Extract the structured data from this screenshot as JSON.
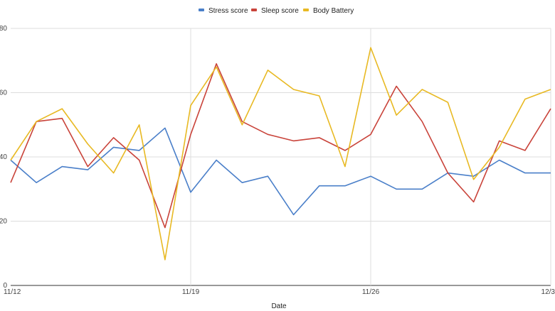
{
  "chart_data": {
    "type": "line",
    "title": "",
    "xlabel": "Date",
    "ylabel": "",
    "ylim": [
      0,
      80
    ],
    "yticks": [
      "0",
      "20",
      "40",
      "60",
      "80"
    ],
    "xtick_labels": [
      "11/12",
      "11/19",
      "11/26",
      "12/3"
    ],
    "xtick_indices": [
      0,
      7,
      14,
      21
    ],
    "x": [
      "11/12",
      "11/13",
      "11/14",
      "11/15",
      "11/16",
      "11/17",
      "11/18",
      "11/19",
      "11/20",
      "11/21",
      "11/22",
      "11/23",
      "11/24",
      "11/25",
      "11/26",
      "11/27",
      "11/28",
      "11/29",
      "11/30",
      "12/1",
      "12/2",
      "12/3"
    ],
    "legend_position": "top",
    "grid": true,
    "series": [
      {
        "name": "Stress score",
        "color": "#4a7fc9",
        "values": [
          39,
          32,
          37,
          36,
          43,
          42,
          49,
          29,
          39,
          32,
          34,
          22,
          31,
          31,
          34,
          30,
          30,
          35,
          34,
          39,
          35,
          35
        ]
      },
      {
        "name": "Sleep score",
        "color": "#c9433a",
        "values": [
          32,
          51,
          52,
          37,
          46,
          39,
          18,
          47,
          69,
          51,
          47,
          45,
          46,
          42,
          47,
          62,
          51,
          35,
          26,
          45,
          42,
          55
        ]
      },
      {
        "name": "Body Battery",
        "color": "#e8b923",
        "values": [
          39,
          51,
          55,
          44,
          35,
          50,
          8,
          56,
          68,
          50,
          67,
          61,
          59,
          37,
          74,
          53,
          61,
          57,
          33,
          43,
          58,
          61
        ]
      }
    ]
  }
}
